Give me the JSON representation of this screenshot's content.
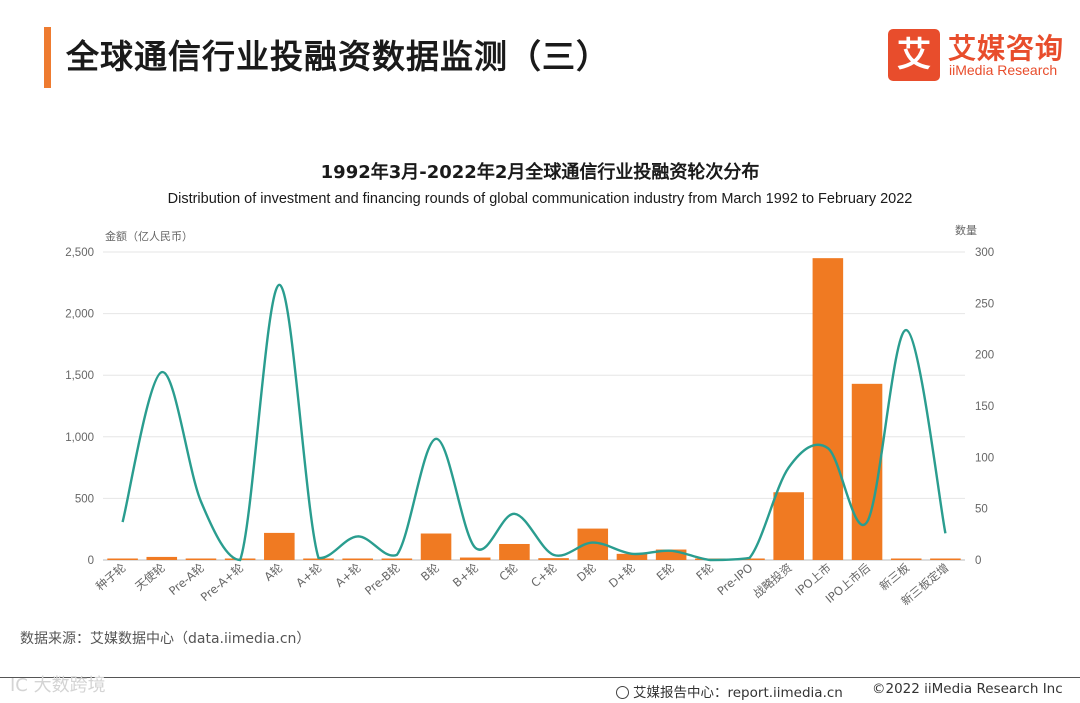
{
  "header": {
    "title": "全球通信行业投融资数据监测（三）",
    "logo_badge": "艾",
    "logo_cn": "艾媒咨询",
    "logo_en": "iiMedia Research"
  },
  "chart_data": {
    "type": "bar+line",
    "title": "1992年3月-2022年2月全球通信行业投融资轮次分布",
    "subtitle": "Distribution of investment and financing rounds of global communication industry from March 1992 to February 2022",
    "left_axis_label": "金额（亿人民币）",
    "right_axis_label": "数量",
    "y_left_range": [
      0,
      2500
    ],
    "y_left_ticks": [
      "0",
      "500",
      "1,000",
      "1,500",
      "2,000",
      "2,500"
    ],
    "y_right_range": [
      0,
      300
    ],
    "y_right_ticks": [
      "0",
      "50",
      "100",
      "150",
      "200",
      "250",
      "300"
    ],
    "grid": true,
    "categories": [
      "种子轮",
      "天使轮",
      "Pre-A轮",
      "Pre-A+轮",
      "A轮",
      "A+轮",
      "A+轮",
      "Pre-B轮",
      "B轮",
      "B+轮",
      "C轮",
      "C+轮",
      "D轮",
      "D+轮",
      "E轮",
      "F轮",
      "Pre-IPO",
      "战略投资",
      "IPO上市",
      "IPO上市后",
      "新三板",
      "新三板定增"
    ],
    "series": [
      {
        "type": "bar",
        "axis": "left",
        "color": "#f07a22",
        "values": [
          10,
          25,
          12,
          5,
          220,
          8,
          10,
          12,
          215,
          20,
          130,
          15,
          255,
          50,
          85,
          8,
          12,
          550,
          2450,
          1430,
          10,
          10
        ]
      },
      {
        "type": "line",
        "axis": "right",
        "color": "#2a9d8f",
        "values": [
          37,
          183,
          57,
          0,
          268,
          2,
          23,
          5,
          118,
          12,
          45,
          5,
          17,
          6,
          9,
          0,
          2,
          90,
          109,
          37,
          224,
          26
        ]
      }
    ]
  },
  "source": "数据来源：艾媒数据中心（data.iimedia.cn）",
  "watermark": "IC 大数跨境",
  "footer": {
    "report": "艾媒报告中心：report.iimedia.cn",
    "copyright": "©2022  iiMedia Research  Inc"
  }
}
